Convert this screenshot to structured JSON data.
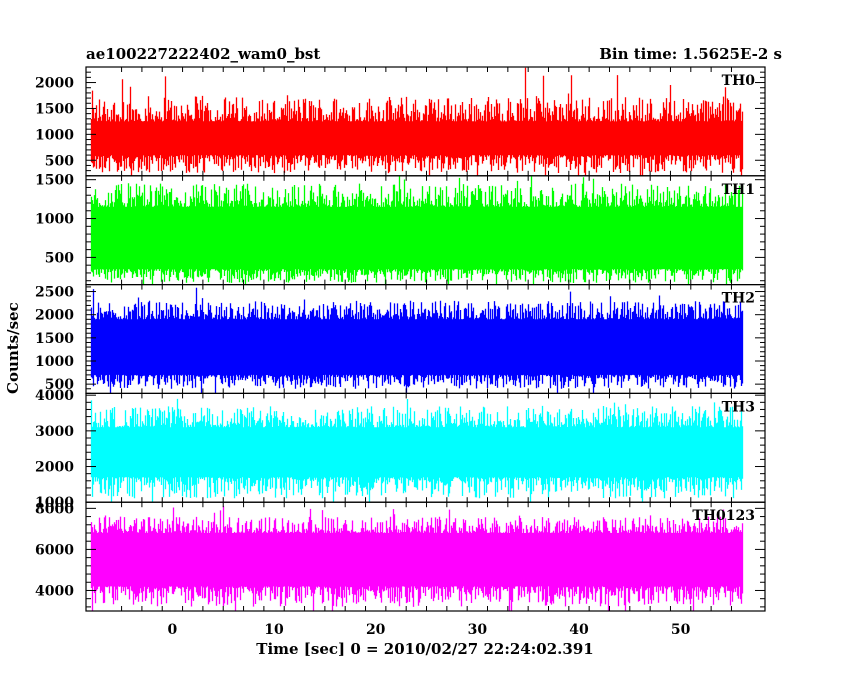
{
  "chart_data": {
    "type": "line",
    "title_left": "ae100227222402_wam0_bst",
    "title_right": "Bin time: 1.5625E-2 s",
    "xlabel": "Time [sec] 0 = 2010/02/27 22:24:02.391",
    "ylabel": "Counts/sec",
    "xlim": [
      -8.5,
      58.3
    ],
    "x_range_data": [
      -8,
      56
    ],
    "x_ticks": [
      0,
      10,
      20,
      30,
      40,
      50
    ],
    "grid": false,
    "panels": [
      {
        "name": "TH0",
        "color": "#ff0000",
        "ylim": [
          200,
          2300
        ],
        "y_ticks": [
          500,
          1000,
          1500,
          2000
        ],
        "band": {
          "low": 250,
          "high": 1750,
          "typical_low": 600,
          "typical_high": 1250,
          "spike_max": 2300
        }
      },
      {
        "name": "TH1",
        "color": "#00ff00",
        "ylim": [
          150,
          1550
        ],
        "y_ticks": [
          500,
          1000,
          1500
        ],
        "band": {
          "low": 170,
          "high": 1450,
          "typical_low": 350,
          "typical_high": 1150,
          "spike_max": 1550
        }
      },
      {
        "name": "TH2",
        "color": "#0000ff",
        "ylim": [
          300,
          2650
        ],
        "y_ticks": [
          500,
          1000,
          1500,
          2000,
          2500
        ],
        "band": {
          "low": 400,
          "high": 2300,
          "typical_low": 700,
          "typical_high": 1900,
          "spike_max": 2600
        }
      },
      {
        "name": "TH3",
        "color": "#00ffff",
        "ylim": [
          1000,
          4050
        ],
        "y_ticks": [
          1000,
          2000,
          3000,
          4000
        ],
        "band": {
          "low": 1100,
          "high": 3700,
          "typical_low": 1700,
          "typical_high": 3100,
          "spike_max": 4000
        }
      },
      {
        "name": "TH0123",
        "color": "#ff00ff",
        "ylim": [
          3000,
          8300
        ],
        "y_ticks": [
          4000,
          6000,
          8000
        ],
        "band": {
          "low": 3200,
          "high": 7600,
          "typical_low": 4200,
          "typical_high": 6800,
          "spike_max": 8100
        }
      }
    ]
  }
}
